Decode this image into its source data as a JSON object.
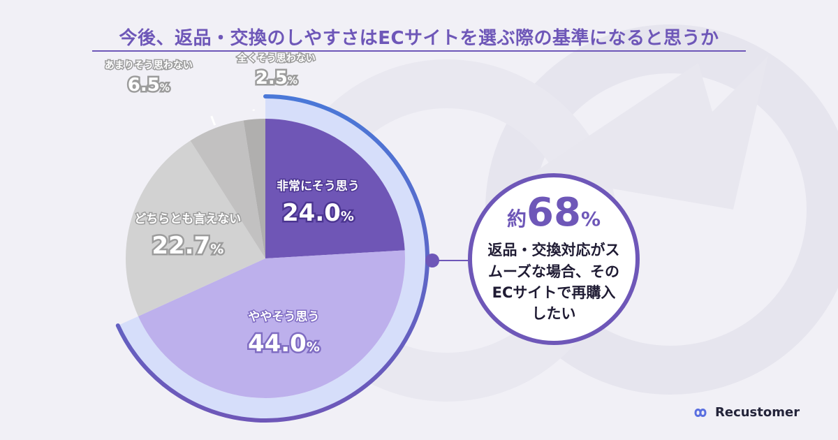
{
  "title": "今後、返品・交換のしやすさはECサイトを選ぶ際の基準になると思うか",
  "callout": {
    "prefix": "約",
    "number": "68",
    "suffix": "%",
    "text": "返品・交換対応がスムーズな場合、そのECサイトで再購入したい"
  },
  "brand": {
    "name": "Recustomer"
  },
  "colors": {
    "accent": "#6e57b8",
    "ring_light": "#d6defa",
    "ring_blue": "#4a78d8",
    "slice_strong": "#6f56b6",
    "slice_medium": "#bdb0ec",
    "slice_neutral": "#d2d2d2",
    "slice_weak": "#c2c1c1",
    "slice_none": "#b0afae"
  },
  "chart_data": {
    "type": "pie",
    "title": "今後、返品・交換のしやすさはECサイトを選ぶ際の基準になると思うか",
    "slices": [
      {
        "label": "非常にそう思う",
        "value": 24.0,
        "display": "24.0",
        "unit": "%"
      },
      {
        "label": "ややそう思う",
        "value": 44.0,
        "display": "44.0",
        "unit": "%"
      },
      {
        "label": "どちらとも言えない",
        "value": 22.7,
        "display": "22.7",
        "unit": "%"
      },
      {
        "label": "あまりそう思わない",
        "value": 6.5,
        "display": "6.5",
        "unit": "%"
      },
      {
        "label": "全くそう思わない",
        "value": 2.5,
        "display": "2.5",
        "unit": "%"
      }
    ],
    "start": "12 o'clock",
    "direction": "clockwise",
    "highlight": {
      "slices": [
        "非常にそう思う",
        "ややそう思う"
      ],
      "total_label": "約68%"
    }
  }
}
